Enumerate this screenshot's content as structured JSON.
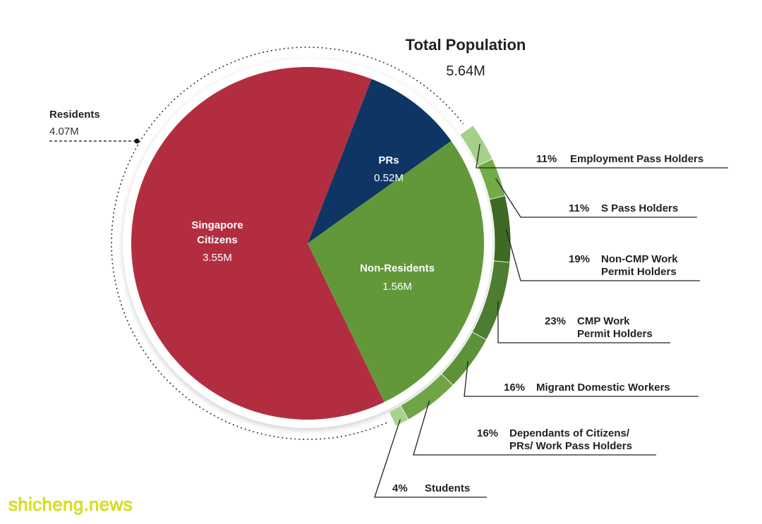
{
  "watermark": "shicheng.news",
  "colors": {
    "citizens": "#b32d40",
    "prs": "#0f3564",
    "non_residents": "#62983a",
    "outer_ring": [
      "#a4d08a",
      "#73ab47",
      "#3f6a25",
      "#4d7d30",
      "#5d9238",
      "#6fa546",
      "#a8d38f"
    ]
  },
  "chart_data": {
    "type": "pie",
    "title": "Total Population",
    "total": "5.64M",
    "residents_group": {
      "label": "Residents",
      "value": "4.07M"
    },
    "slices": [
      {
        "name": "Singapore Citizens",
        "label_lines": [
          "Singapore",
          "Citizens"
        ],
        "value": 3.55,
        "value_label": "3.55M"
      },
      {
        "name": "PRs",
        "label_lines": [
          "PRs"
        ],
        "value": 0.52,
        "value_label": "0.52M"
      },
      {
        "name": "Non-Residents",
        "label_lines": [
          "Non-Residents"
        ],
        "value": 1.56,
        "value_label": "1.56M"
      }
    ],
    "non_resident_breakdown": [
      {
        "pct": 11,
        "pct_label": "11%",
        "name_lines": [
          "Employment Pass Holders"
        ]
      },
      {
        "pct": 11,
        "pct_label": "11%",
        "name_lines": [
          "S Pass Holders"
        ]
      },
      {
        "pct": 19,
        "pct_label": "19%",
        "name_lines": [
          "Non-CMP Work",
          "Permit Holders"
        ]
      },
      {
        "pct": 23,
        "pct_label": "23%",
        "name_lines": [
          "CMP Work",
          "Permit Holders"
        ]
      },
      {
        "pct": 16,
        "pct_label": "16%",
        "name_lines": [
          "Migrant Domestic Workers"
        ]
      },
      {
        "pct": 16,
        "pct_label": "16%",
        "name_lines": [
          "Dependants of Citizens/",
          "PRs/ Work Pass Holders"
        ]
      },
      {
        "pct": 4,
        "pct_label": "4%",
        "name_lines": [
          "Students"
        ]
      }
    ]
  }
}
